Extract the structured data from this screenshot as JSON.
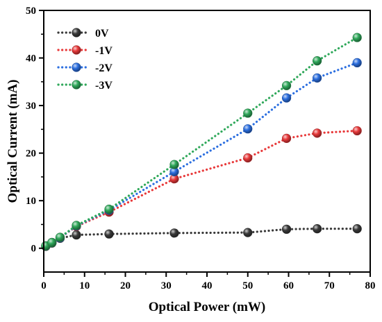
{
  "chart_data": {
    "type": "line",
    "xlabel": "Optical Power (mW)",
    "ylabel": "Optical Current (mA)",
    "xlim": [
      0,
      80
    ],
    "ylim": [
      -5,
      50
    ],
    "xticks": [
      0,
      10,
      20,
      30,
      40,
      50,
      60,
      70,
      80
    ],
    "yticks": [
      0,
      10,
      20,
      30,
      40,
      50
    ],
    "grid": false,
    "legend_position": "top-left",
    "line_style": "dotted",
    "series": [
      {
        "name": "0V",
        "color": "#3a3a3a",
        "x": [
          0.5,
          2,
          4,
          8,
          16,
          32,
          50,
          59.5,
          67,
          76.8
        ],
        "y": [
          0.4,
          1.1,
          2.1,
          2.8,
          3.0,
          3.2,
          3.3,
          4.0,
          4.1,
          4.1
        ]
      },
      {
        "name": "-1V",
        "color": "#e8393a",
        "x": [
          0.5,
          2,
          4,
          8,
          16,
          32,
          50,
          59.5,
          67,
          76.8
        ],
        "y": [
          0.5,
          1.2,
          2.2,
          4.6,
          7.6,
          14.6,
          19.0,
          23.1,
          24.2,
          24.7
        ]
      },
      {
        "name": "-2V",
        "color": "#2c6fe0",
        "x": [
          0.5,
          2,
          4,
          8,
          16,
          32,
          50,
          59.5,
          67,
          76.8
        ],
        "y": [
          0.5,
          1.2,
          2.2,
          4.7,
          8.0,
          16.1,
          25.1,
          31.6,
          35.8,
          39.0
        ]
      },
      {
        "name": "-3V",
        "color": "#2fa85a",
        "x": [
          0.5,
          2,
          4,
          8,
          16,
          32,
          50,
          59.5,
          67,
          76.8
        ],
        "y": [
          0.5,
          1.2,
          2.3,
          4.8,
          8.2,
          17.6,
          28.4,
          34.2,
          39.4,
          44.3
        ]
      }
    ]
  }
}
